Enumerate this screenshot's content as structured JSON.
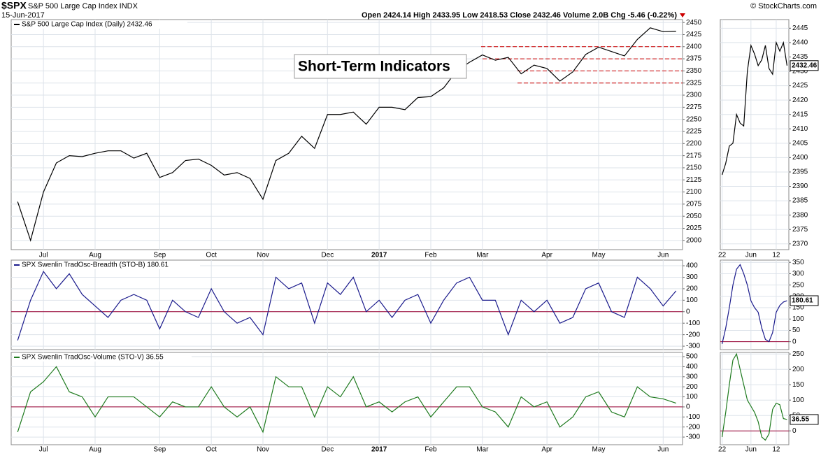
{
  "header": {
    "symbol": "$SPX",
    "name": "S&P 500 Large Cap Index  INDX",
    "date": "15-Jun-2017",
    "quote": "Open 2424.14  High 2433.95  Low 2418.53  Close 2432.46  Volume 2.0B  Chg -5.46 (-0.22%)",
    "credit": "© StockCharts.com"
  },
  "chart_data": [
    {
      "type": "line",
      "title": "S&P 500 Large Cap Index (Daily) 2432.46",
      "annotation": "Short-Term Indicators",
      "color": "#000000",
      "grid": true,
      "categories": [
        null,
        null,
        "Jul",
        null,
        null,
        null,
        "Aug",
        null,
        null,
        null,
        null,
        "Sep",
        null,
        null,
        null,
        "Oct",
        null,
        null,
        null,
        "Nov",
        null,
        null,
        null,
        null,
        "Dec",
        null,
        null,
        null,
        "2017",
        null,
        null,
        null,
        "Feb",
        null,
        null,
        null,
        "Mar",
        null,
        null,
        null,
        null,
        "Apr",
        null,
        null,
        null,
        "May",
        null,
        null,
        null,
        null,
        "Jun",
        null
      ],
      "values": [
        2080,
        2000,
        2100,
        2160,
        2175,
        2173,
        2180,
        2185,
        2185,
        2170,
        2180,
        2130,
        2140,
        2165,
        2168,
        2155,
        2135,
        2140,
        2128,
        2085,
        2165,
        2180,
        2215,
        2190,
        2260,
        2260,
        2265,
        2240,
        2275,
        2275,
        2270,
        2295,
        2297,
        2315,
        2350,
        2368,
        2383,
        2372,
        2378,
        2344,
        2362,
        2355,
        2329,
        2348,
        2384,
        2399,
        2390,
        2381,
        2415,
        2439,
        2431,
        2432
      ],
      "levels": [
        2400,
        2375,
        2350,
        2325
      ],
      "level_color": "#cc0000",
      "ylim": [
        1981,
        2456
      ],
      "yticks": [
        2000,
        2025,
        2050,
        2075,
        2100,
        2125,
        2150,
        2175,
        2200,
        2225,
        2250,
        2275,
        2300,
        2325,
        2350,
        2375,
        2400,
        2425,
        2450
      ]
    },
    {
      "type": "line",
      "title": "SPX Swenlin TradOsc-Breadth (STO-B) 180.61",
      "color": "#1a1a8c",
      "grid": true,
      "ref_line": 0,
      "ref_color": "#990033",
      "values": [
        -250,
        100,
        350,
        200,
        330,
        150,
        50,
        -50,
        100,
        150,
        100,
        -150,
        100,
        0,
        -50,
        200,
        0,
        -100,
        -50,
        -200,
        300,
        200,
        250,
        -100,
        250,
        150,
        300,
        0,
        100,
        -50,
        100,
        150,
        -100,
        100,
        250,
        300,
        100,
        100,
        -200,
        100,
        0,
        100,
        -100,
        -50,
        200,
        250,
        0,
        -50,
        300,
        200,
        50,
        181
      ],
      "ylim": [
        -330,
        449
      ],
      "yticks": [
        -300,
        -200,
        -100,
        0,
        100,
        200,
        300,
        400
      ]
    },
    {
      "type": "line",
      "title": "SPX Swenlin TradOsc-Volume (STO-V) 36.55",
      "color": "#1e7a1e",
      "grid": true,
      "ref_line": 0,
      "ref_color": "#990033",
      "categories": [
        null,
        null,
        "Jul",
        null,
        null,
        null,
        "Aug",
        null,
        null,
        null,
        null,
        "Sep",
        null,
        null,
        null,
        "Oct",
        null,
        null,
        null,
        "Nov",
        null,
        null,
        null,
        null,
        "Dec",
        null,
        null,
        null,
        "2017",
        null,
        null,
        null,
        "Feb",
        null,
        null,
        null,
        "Mar",
        null,
        null,
        null,
        null,
        "Apr",
        null,
        null,
        null,
        "May",
        null,
        null,
        null,
        null,
        "Jun",
        null
      ],
      "values": [
        -250,
        150,
        250,
        400,
        150,
        100,
        -100,
        100,
        100,
        100,
        0,
        -100,
        50,
        0,
        0,
        200,
        0,
        -100,
        0,
        -250,
        300,
        200,
        200,
        -100,
        200,
        100,
        300,
        0,
        50,
        -50,
        50,
        100,
        -100,
        50,
        200,
        200,
        0,
        -50,
        -200,
        100,
        0,
        50,
        -200,
        -100,
        100,
        150,
        -50,
        -100,
        200,
        100,
        80,
        37
      ],
      "ylim": [
        -376,
        542
      ],
      "yticks": [
        -300,
        -200,
        -100,
        0,
        100,
        200,
        300,
        400,
        500
      ]
    },
    {
      "type": "line",
      "color": "#000000",
      "grid": true,
      "last_label": "2432.46",
      "categories": [
        "22",
        null,
        null,
        null,
        null,
        null,
        null,
        null,
        "Jun",
        null,
        null,
        null,
        null,
        null,
        null,
        "12",
        null,
        null,
        null
      ],
      "values": [
        2394,
        2398,
        2404,
        2405,
        2415,
        2412,
        2411,
        2430,
        2439,
        2436,
        2432,
        2434,
        2439,
        2431,
        2429,
        2440,
        2437,
        2440,
        2432
      ],
      "ylim": [
        2368,
        2448
      ],
      "yticks": [
        2370,
        2375,
        2380,
        2385,
        2390,
        2395,
        2400,
        2405,
        2410,
        2415,
        2420,
        2425,
        2430,
        2435,
        2440,
        2445
      ]
    },
    {
      "type": "line",
      "color": "#1a1a8c",
      "grid": true,
      "ref_line": 0,
      "ref_color": "#990033",
      "last_label": "180.61",
      "values": [
        -10,
        60,
        150,
        250,
        320,
        340,
        300,
        250,
        180,
        150,
        130,
        60,
        10,
        0,
        40,
        130,
        160,
        175,
        181
      ],
      "ylim": [
        -35,
        360
      ],
      "yticks": [
        0,
        50,
        100,
        150,
        200,
        250,
        300,
        350
      ]
    },
    {
      "type": "line",
      "color": "#1e7a1e",
      "grid": true,
      "ref_line": 0,
      "ref_color": "#990033",
      "last_label": "36.55",
      "categories": [
        "22",
        null,
        null,
        null,
        null,
        null,
        null,
        null,
        "Jun",
        null,
        null,
        null,
        null,
        null,
        null,
        "12",
        null,
        null,
        null
      ],
      "values": [
        -20,
        60,
        150,
        230,
        250,
        200,
        150,
        100,
        80,
        60,
        30,
        -20,
        -30,
        -10,
        70,
        90,
        85,
        40,
        37
      ],
      "ylim": [
        -45,
        255
      ],
      "yticks": [
        0,
        50,
        100,
        150,
        200,
        250
      ]
    }
  ]
}
